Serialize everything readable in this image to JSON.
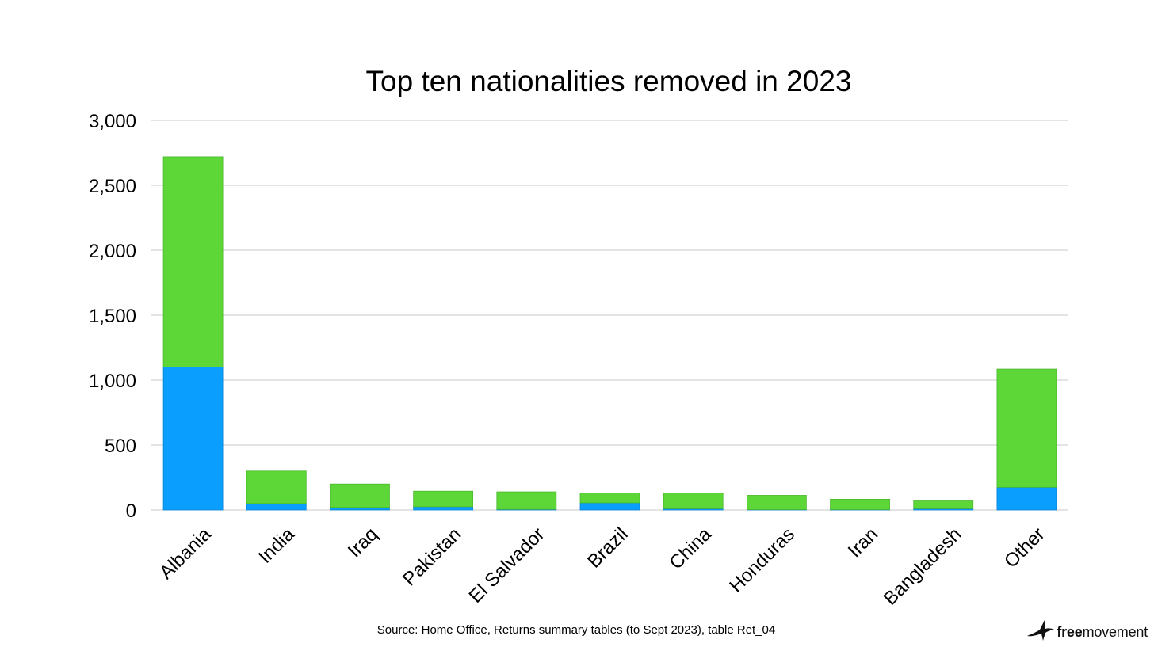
{
  "chart_data": {
    "type": "bar",
    "stacked": true,
    "title": "Top ten nationalities removed in 2023",
    "categories": [
      "Albania",
      "India",
      "Iraq",
      "Pakistan",
      "El Salvador",
      "Brazil",
      "China",
      "Honduras",
      "Iran",
      "Bangladesh",
      "Other"
    ],
    "series": [
      {
        "color": "#0a9eff",
        "values": [
          1100,
          50,
          20,
          25,
          5,
          55,
          10,
          3,
          3,
          10,
          175
        ]
      },
      {
        "color": "#5dd738",
        "values": [
          1620,
          250,
          180,
          120,
          135,
          75,
          120,
          110,
          80,
          60,
          910
        ]
      }
    ],
    "ylim": [
      0,
      3000
    ],
    "yticks": [
      0,
      500,
      1000,
      1500,
      2000,
      2500,
      3000
    ],
    "ytick_labels": [
      "0",
      "500",
      "1,000",
      "1,500",
      "2,000",
      "2,500",
      "3,000"
    ],
    "grid": true,
    "legend": "none"
  },
  "source_note": "Source: Home Office, Returns summary tables (to Sept 2023), table Ret_04",
  "logo": {
    "text_bold": "free",
    "text_regular": "movement"
  }
}
